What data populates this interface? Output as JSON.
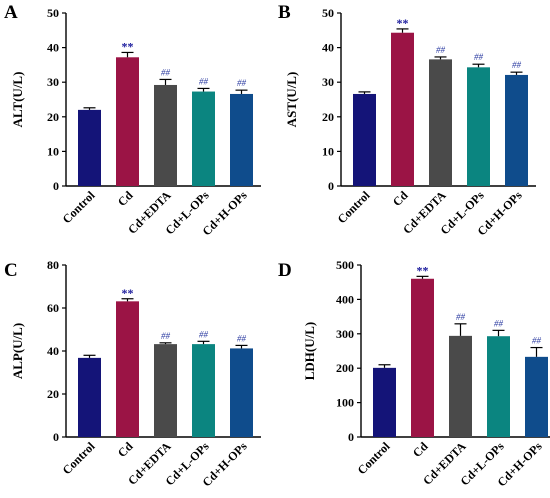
{
  "chart_data": [
    {
      "type": "bar",
      "panel": "A",
      "ylabel": "ALT(U/L)",
      "ylim": [
        0,
        50
      ],
      "yticks": [
        "0",
        "10",
        "20",
        "30",
        "40",
        "50"
      ],
      "categories": [
        "Control",
        "Cd",
        "Cd+EDTA",
        "Cd+L-OPs",
        "Cd+H-OPs"
      ],
      "values": [
        22,
        37.2,
        29.2,
        27.3,
        26.6
      ],
      "errors": [
        0.6,
        1.4,
        1.6,
        0.9,
        1.1
      ],
      "annotations": [
        "",
        "**",
        "##",
        "##",
        "##"
      ]
    },
    {
      "type": "bar",
      "panel": "B",
      "ylabel": "AST(U/L)",
      "ylim": [
        0,
        50
      ],
      "yticks": [
        "0",
        "10",
        "20",
        "30",
        "40",
        "50"
      ],
      "categories": [
        "Control",
        "Cd",
        "Cd+EDTA",
        "Cd+L-OPs",
        "Cd+H-OPs"
      ],
      "values": [
        26.6,
        44.3,
        36.6,
        34.3,
        32.1
      ],
      "errors": [
        0.6,
        1.1,
        0.7,
        0.9,
        0.8
      ],
      "annotations": [
        "",
        "**",
        "##",
        "##",
        "##"
      ]
    },
    {
      "type": "bar",
      "panel": "C",
      "ylabel": "ALP(U/L)",
      "ylim": [
        0,
        80
      ],
      "yticks": [
        "0",
        "20",
        "40",
        "60",
        "80"
      ],
      "categories": [
        "Control",
        "Cd",
        "Cd+EDTA",
        "Cd+L-OPs",
        "Cd+H-OPs"
      ],
      "values": [
        36.8,
        63.1,
        43.2,
        43.2,
        41.2
      ],
      "errors": [
        1.2,
        1.2,
        0.6,
        1.3,
        1.4
      ],
      "annotations": [
        "",
        "**",
        "##",
        "##",
        "##"
      ]
    },
    {
      "type": "bar",
      "panel": "D",
      "ylabel": "LDH(U/L)",
      "ylim": [
        0,
        500
      ],
      "yticks": [
        "0",
        "100",
        "200",
        "300",
        "400",
        "500"
      ],
      "categories": [
        "Control",
        "Cd",
        "Cd+EDTA",
        "Cd+L-OPs",
        "Cd+H-OPs"
      ],
      "values": [
        201,
        460,
        294,
        293,
        233
      ],
      "errors": [
        9,
        7,
        35,
        17,
        27
      ],
      "annotations": [
        "",
        "**",
        "##",
        "##",
        "##"
      ]
    }
  ],
  "colors": {
    "bars": [
      "#141478",
      "#9b1445",
      "#4a4a4a",
      "#0b8580",
      "#0f4c8c"
    ],
    "star": "#1e1e9e",
    "hash": "#2a3aa0",
    "axis": "#000000"
  }
}
